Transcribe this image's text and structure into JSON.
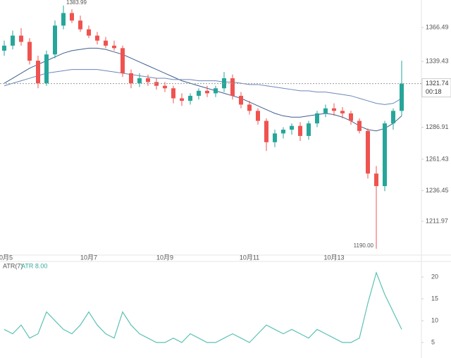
{
  "chart_data": [
    {
      "type": "candlestick",
      "categories": [
        "10月5",
        null,
        null,
        null,
        null,
        null,
        null,
        null,
        null,
        null,
        "10月7",
        null,
        null,
        null,
        null,
        null,
        null,
        null,
        null,
        "10月9",
        null,
        null,
        null,
        null,
        null,
        null,
        null,
        null,
        null,
        "10月11",
        null,
        null,
        null,
        null,
        null,
        null,
        null,
        null,
        null,
        "10月13",
        null,
        null,
        null,
        null,
        null,
        null,
        null,
        null
      ],
      "open": [
        1348,
        1352,
        1360,
        1355,
        1340,
        1322,
        1345,
        1368,
        1378,
        1372,
        1365,
        1360,
        1356,
        1352,
        1350,
        1330,
        1322,
        1326,
        1323,
        1320,
        1318,
        1310,
        1308,
        1312,
        1316,
        1314,
        1318,
        1326,
        1312,
        1305,
        1300,
        1292,
        1275,
        1282,
        1285,
        1288,
        1280,
        1290,
        1298,
        1302,
        1300,
        1298,
        1292,
        1284,
        1250,
        1240,
        1290,
        1300
      ],
      "high": [
        1356,
        1364,
        1366,
        1358,
        1344,
        1348,
        1372,
        1383.99,
        1381,
        1376,
        1368,
        1363,
        1359,
        1356,
        1352,
        1333,
        1330,
        1329,
        1326,
        1323,
        1320,
        1314,
        1314,
        1318,
        1320,
        1320,
        1331,
        1329,
        1315,
        1308,
        1302,
        1294,
        1285,
        1287,
        1290,
        1291,
        1292,
        1300,
        1305,
        1306,
        1303,
        1300,
        1294,
        1286,
        1256,
        1292,
        1302,
        1340
      ],
      "low": [
        1344,
        1349,
        1352,
        1337,
        1318,
        1320,
        1342,
        1365,
        1370,
        1363,
        1358,
        1353,
        1350,
        1348,
        1327,
        1318,
        1319,
        1320,
        1317,
        1315,
        1306,
        1304,
        1305,
        1309,
        1311,
        1311,
        1315,
        1309,
        1302,
        1297,
        1289,
        1268,
        1271,
        1278,
        1281,
        1276,
        1277,
        1287,
        1295,
        1296,
        1294,
        1289,
        1282,
        1246,
        1190,
        1236,
        1285,
        1296
      ],
      "close": [
        1352,
        1360,
        1355,
        1340,
        1322,
        1345,
        1368,
        1378,
        1372,
        1365,
        1360,
        1356,
        1352,
        1350,
        1330,
        1322,
        1326,
        1323,
        1320,
        1318,
        1310,
        1308,
        1312,
        1316,
        1314,
        1318,
        1326,
        1312,
        1305,
        1300,
        1292,
        1275,
        1282,
        1285,
        1288,
        1280,
        1290,
        1298,
        1302,
        1300,
        1298,
        1292,
        1284,
        1250,
        1240,
        1290,
        1300,
        1321.74
      ],
      "up_color": "#26a69a",
      "down_color": "#ef5350",
      "overlays": [
        {
          "color": "#3f5f8f",
          "values": [
            1322,
            1326,
            1330,
            1334,
            1337,
            1340,
            1343,
            1346,
            1348,
            1349,
            1350,
            1350,
            1349,
            1347,
            1345,
            1342,
            1339,
            1336,
            1333,
            1330,
            1327,
            1324,
            1322,
            1320,
            1318,
            1316,
            1314,
            1312,
            1310,
            1307,
            1304,
            1301,
            1298,
            1296,
            1295,
            1295,
            1296,
            1297,
            1298,
            1297,
            1295,
            1292,
            1288,
            1285,
            1284,
            1286,
            1290,
            1296
          ]
        },
        {
          "color": "#6a88b8",
          "values": [
            1320,
            1322,
            1324,
            1326,
            1328,
            1330,
            1331,
            1332,
            1333,
            1333,
            1333,
            1333,
            1332,
            1331,
            1330,
            1329,
            1328,
            1327,
            1326,
            1326,
            1325,
            1325,
            1325,
            1324,
            1324,
            1324,
            1323,
            1323,
            1322,
            1321,
            1321,
            1320,
            1319,
            1318,
            1317,
            1316,
            1316,
            1315,
            1315,
            1314,
            1313,
            1312,
            1310,
            1308,
            1306,
            1305,
            1306,
            1310
          ]
        }
      ],
      "ylim": [
        1186.1,
        1388.4
      ],
      "yticks": [
        1211.97,
        1236.45,
        1261.43,
        1286.91,
        1339.43,
        1366.49
      ],
      "high_label": "1383.99",
      "low_label": "1190.00",
      "last_price": 1321.74,
      "countdown": "00:18"
    },
    {
      "type": "line",
      "label": "ATR(7)",
      "value_label": "ATR 8.00",
      "color": "#5cc1b4",
      "values": [
        8,
        7,
        9,
        6,
        7,
        12,
        10,
        8,
        7,
        9,
        12,
        9,
        7,
        6,
        12,
        9,
        7,
        6,
        5,
        5,
        6,
        5,
        7,
        6,
        5,
        5,
        6,
        7,
        6,
        5,
        7,
        9,
        8,
        7,
        8,
        7,
        6,
        8,
        7,
        6,
        5,
        5,
        6,
        14,
        21,
        16,
        12,
        8
      ],
      "ylim": [
        1.45,
        23.4
      ],
      "yticks": [
        5,
        10,
        15,
        20
      ]
    }
  ]
}
